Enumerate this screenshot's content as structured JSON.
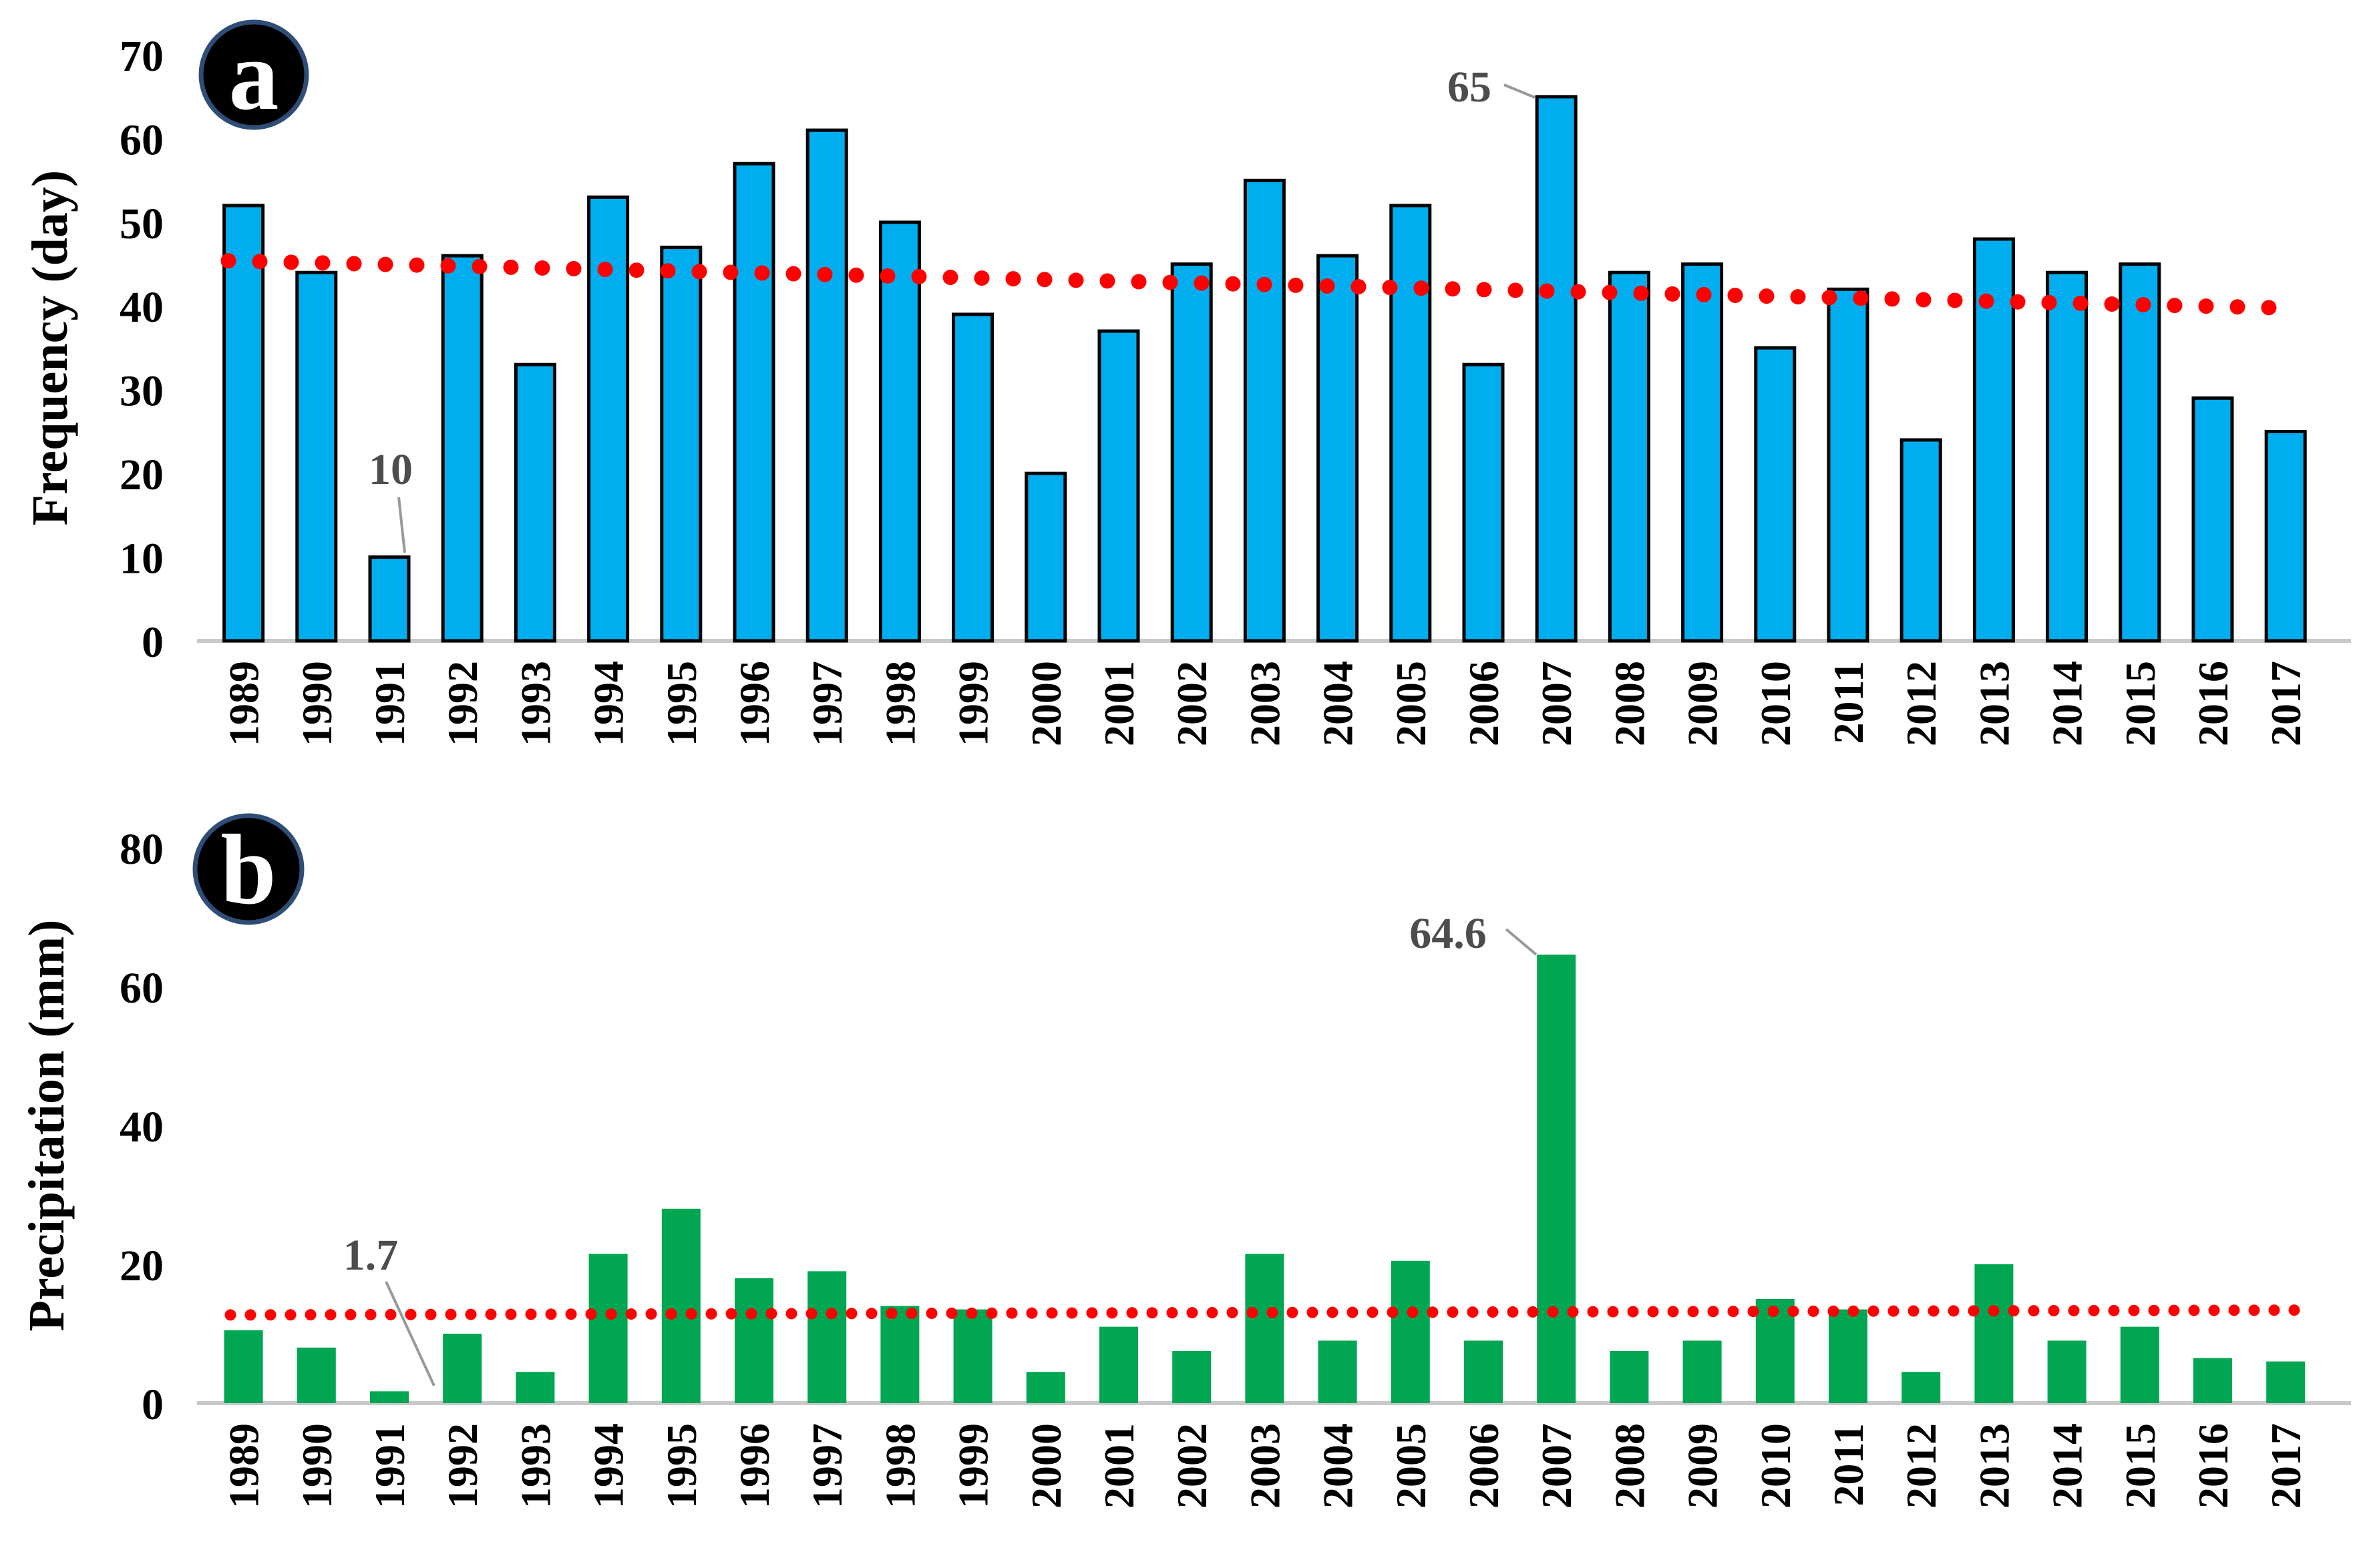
{
  "figure": {
    "type": "two-panel annual bar chart with dotted linear trendlines",
    "background": "#ffffff"
  },
  "chart_data": [
    {
      "type": "bar",
      "panel_badge": "a",
      "title": "",
      "xlabel": "",
      "ylabel": "Frequency (day)",
      "categories": [
        "1989",
        "1990",
        "1991",
        "1992",
        "1993",
        "1994",
        "1995",
        "1996",
        "1997",
        "1998",
        "1999",
        "2000",
        "2001",
        "2002",
        "2003",
        "2004",
        "2005",
        "2006",
        "2007",
        "2008",
        "2009",
        "2010",
        "2011",
        "2012",
        "2013",
        "2014",
        "2015",
        "2016",
        "2017"
      ],
      "values": [
        52,
        44,
        10,
        46,
        33,
        53,
        47,
        57,
        61,
        50,
        39,
        20,
        37,
        45,
        55,
        46,
        52,
        33,
        65,
        44,
        45,
        35,
        42,
        24,
        48,
        44,
        45,
        29,
        25
      ],
      "ylim": [
        0,
        70
      ],
      "yticks": [
        0,
        10,
        20,
        30,
        40,
        50,
        60,
        70
      ],
      "grid": false,
      "legend": false,
      "bar_color": "#00AEEF",
      "bar_border": "#000000",
      "trendline": {
        "style": "dotted",
        "color": "#FF0000",
        "start_value": 45.4,
        "end_value": 39.8
      },
      "annotations": [
        {
          "label": "10",
          "category": "1991",
          "value": 10
        },
        {
          "label": "65",
          "category": "2007",
          "value": 65
        }
      ]
    },
    {
      "type": "bar",
      "panel_badge": "b",
      "title": "",
      "xlabel": "",
      "ylabel": "Precipitation (mm)",
      "categories": [
        "1989",
        "1990",
        "1991",
        "1992",
        "1993",
        "1994",
        "1995",
        "1996",
        "1997",
        "1998",
        "1999",
        "2000",
        "2001",
        "2002",
        "2003",
        "2004",
        "2005",
        "2006",
        "2007",
        "2008",
        "2009",
        "2010",
        "2011",
        "2012",
        "2013",
        "2014",
        "2015",
        "2016",
        "2017"
      ],
      "values": [
        10.5,
        8,
        1.7,
        10,
        4.5,
        21.5,
        28,
        18,
        19,
        14,
        13.5,
        4.5,
        11,
        7.5,
        21.5,
        9,
        20.5,
        9,
        64.6,
        7.5,
        9,
        15,
        13.5,
        4.5,
        20,
        9,
        11,
        6.5,
        6
      ],
      "ylim": [
        0,
        80
      ],
      "yticks": [
        0,
        20,
        40,
        60,
        80
      ],
      "grid": false,
      "legend": false,
      "bar_color": "#00A651",
      "bar_border": "none",
      "trendline": {
        "style": "dotted",
        "color": "#FF0000",
        "start_value": 12.7,
        "end_value": 13.4
      },
      "annotations": [
        {
          "label": "1.7",
          "category": "1991",
          "value": 1.7
        },
        {
          "label": "64.6",
          "category": "2007",
          "value": 64.6
        }
      ]
    }
  ],
  "colors": {
    "bar_blue": "#00AEEF",
    "bar_green": "#00A651",
    "trend_red": "#FF0000",
    "axis_line": "#C9C9C9",
    "annotation_text": "#4d4d4d",
    "annotation_leader": "#999999",
    "badge_fill": "#000000",
    "badge_ring": "#2e4d77",
    "badge_letter_color": "#ffffff"
  }
}
